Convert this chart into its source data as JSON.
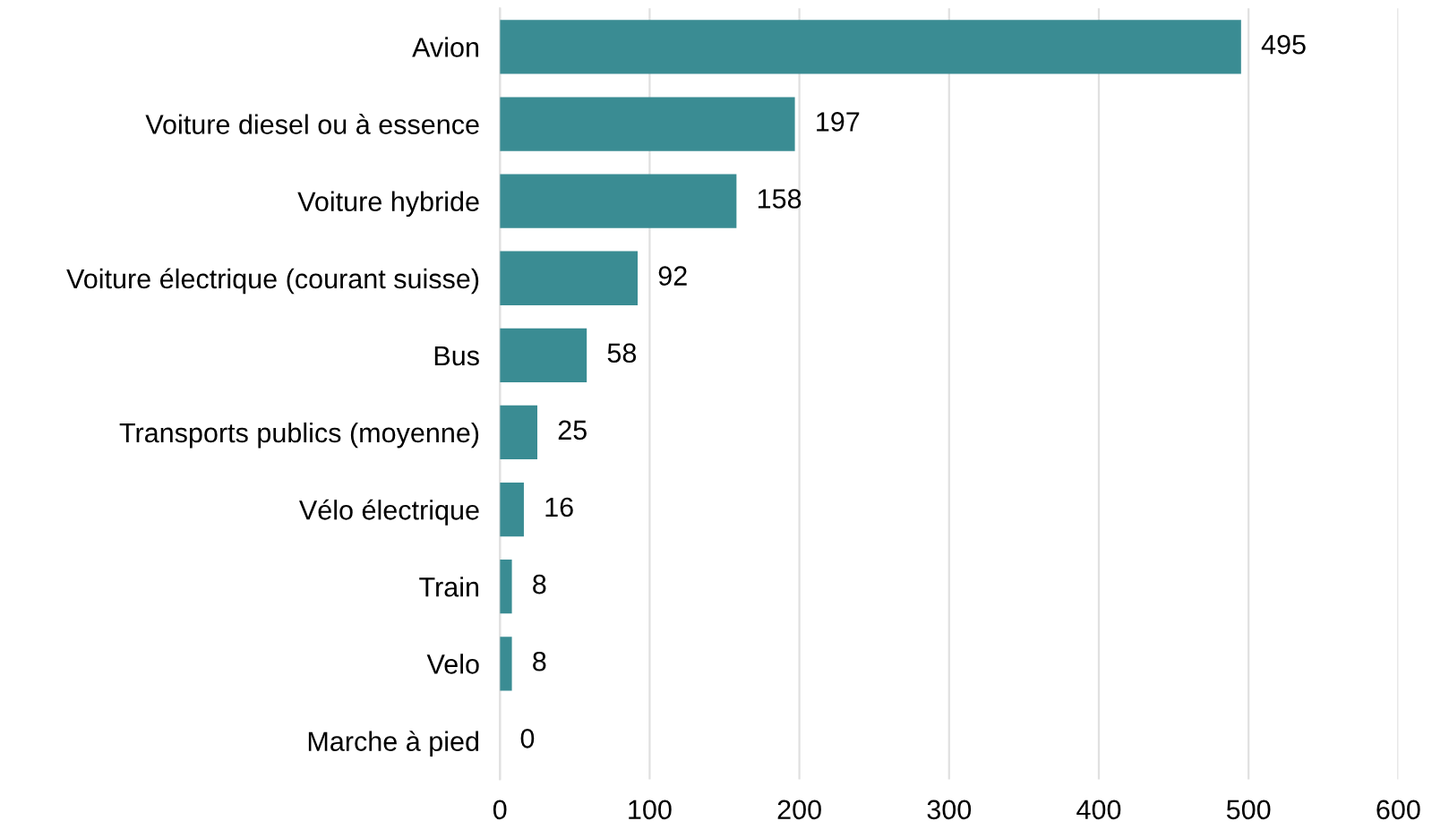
{
  "chart_data": {
    "type": "bar",
    "orientation": "horizontal",
    "categories": [
      "Avion",
      "Voiture diesel ou à essence",
      "Voiture hybride",
      "Voiture électrique (courant suisse)",
      "Bus",
      "Transports publics (moyenne)",
      "Vélo électrique",
      "Train",
      "Velo",
      "Marche à pied"
    ],
    "values": [
      495,
      197,
      158,
      92,
      58,
      25,
      16,
      8,
      8,
      0
    ],
    "color": "#3a8c93",
    "xlim": [
      0,
      600
    ],
    "xticks": [
      0,
      100,
      200,
      300,
      400,
      500,
      600
    ],
    "grid": "x",
    "data_labels": true
  }
}
